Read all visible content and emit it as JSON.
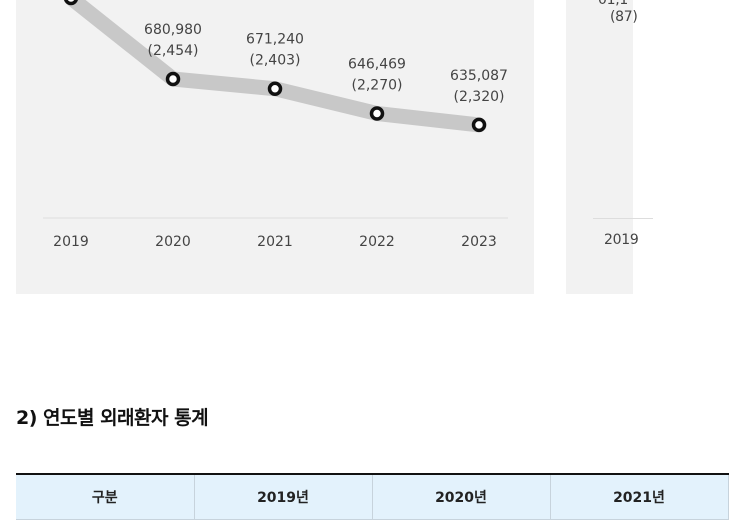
{
  "chart_data": {
    "type": "line",
    "categories": [
      "2019",
      "2020",
      "2021",
      "2022",
      "2023"
    ],
    "series": [
      {
        "values": [
          null,
          680980,
          671240,
          646469,
          635087
        ],
        "secondary": [
          null,
          "2,454",
          "2,403",
          "2,270",
          "2,320"
        ]
      }
    ],
    "data_labels": [
      {
        "value": "",
        "sub": ""
      },
      {
        "value": "680,980",
        "sub": "(2,454)"
      },
      {
        "value": "671,240",
        "sub": "(2,403)"
      },
      {
        "value": "646,469",
        "sub": "(2,270)"
      },
      {
        "value": "635,087",
        "sub": "(2,320)"
      }
    ],
    "first_point_partial": true,
    "grid": false,
    "colors": {
      "line": "#c8c8c8",
      "marker": "#111111",
      "panel": "#f2f2f2"
    }
  },
  "side_chart": {
    "partial_label_top": "01,1",
    "partial_label_sub": "(87)",
    "partial_tick": "2019"
  },
  "section": {
    "title": "2) 연도별 외래환자 통계"
  },
  "table": {
    "headers": [
      "구분",
      "2019년",
      "2020년",
      "2021년"
    ]
  }
}
